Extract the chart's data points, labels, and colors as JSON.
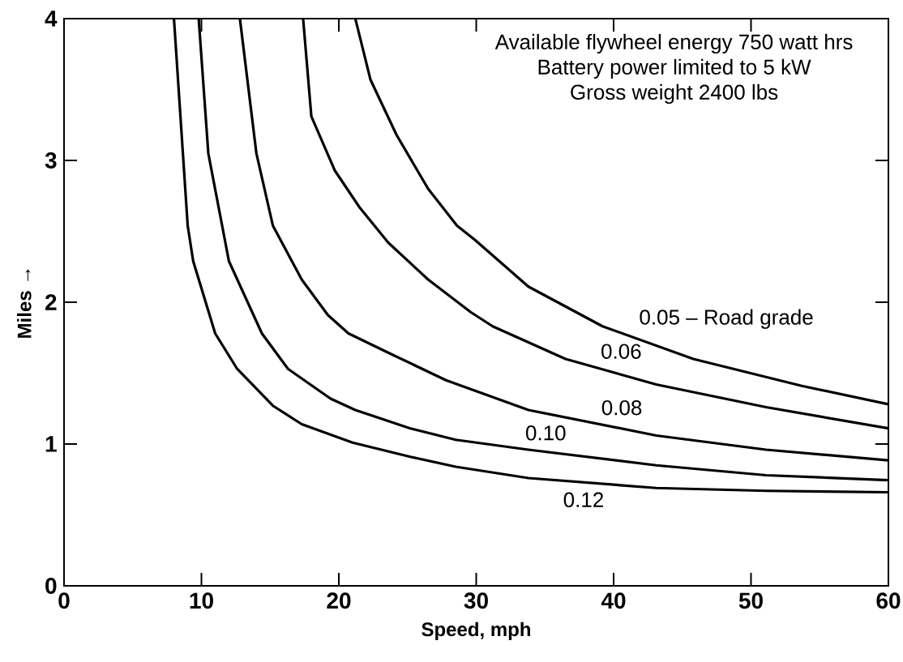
{
  "chart_data": {
    "type": "line",
    "xlabel": "Speed, mph",
    "ylabel": "Miles →",
    "xlim": [
      0,
      60
    ],
    "ylim": [
      0,
      4
    ],
    "xticks": [
      0,
      10,
      20,
      30,
      40,
      50,
      60
    ],
    "yticks": [
      0,
      1,
      2,
      3,
      4
    ],
    "grid": false,
    "legend": false,
    "marker": "none",
    "line_style": "solid",
    "annotations": [
      "Available flywheel energy 750 watt hrs",
      "Battery power limited to 5 kW",
      "Gross weight 2400 lbs"
    ],
    "series": [
      {
        "name": "0.12",
        "color": "#000000",
        "x": [
          8.0,
          9.0,
          9.4,
          11.0,
          12.6,
          15.2,
          17.3,
          21.0,
          25.2,
          28.5,
          33.8,
          43.1,
          51.1,
          60
        ],
        "values": [
          4.0,
          2.54,
          2.29,
          1.78,
          1.53,
          1.27,
          1.14,
          1.01,
          0.91,
          0.84,
          0.76,
          0.69,
          0.67,
          0.66
        ]
      },
      {
        "name": "0.10",
        "color": "#000000",
        "x": [
          9.8,
          10.5,
          12.0,
          14.4,
          16.3,
          19.4,
          21.2,
          25.2,
          28.5,
          33.8,
          43.1,
          51.1,
          60
        ],
        "values": [
          4.0,
          3.05,
          2.29,
          1.78,
          1.53,
          1.32,
          1.24,
          1.11,
          1.03,
          0.96,
          0.85,
          0.78,
          0.745
        ]
      },
      {
        "name": "0.08",
        "color": "#000000",
        "x": [
          12.8,
          14.0,
          15.2,
          17.3,
          19.2,
          20.7,
          23.9,
          27.8,
          33.8,
          43.1,
          51.1,
          60
        ],
        "values": [
          4.0,
          3.05,
          2.54,
          2.16,
          1.91,
          1.78,
          1.63,
          1.45,
          1.24,
          1.06,
          0.96,
          0.885
        ]
      },
      {
        "name": "0.06",
        "color": "#000000",
        "x": [
          17.4,
          18.0,
          19.7,
          21.5,
          23.6,
          26.5,
          29.6,
          31.2,
          36.5,
          43.1,
          51.1,
          60
        ],
        "values": [
          4.0,
          3.31,
          2.93,
          2.67,
          2.42,
          2.16,
          1.93,
          1.83,
          1.6,
          1.42,
          1.26,
          1.11
        ]
      },
      {
        "name": "0.05 – Road grade",
        "color": "#000000",
        "x": [
          21.2,
          22.3,
          24.2,
          26.5,
          28.6,
          29.9,
          33.8,
          39.2,
          45.8,
          53.7,
          60
        ],
        "values": [
          4.0,
          3.57,
          3.18,
          2.8,
          2.54,
          2.44,
          2.11,
          1.83,
          1.6,
          1.41,
          1.28
        ]
      }
    ]
  }
}
